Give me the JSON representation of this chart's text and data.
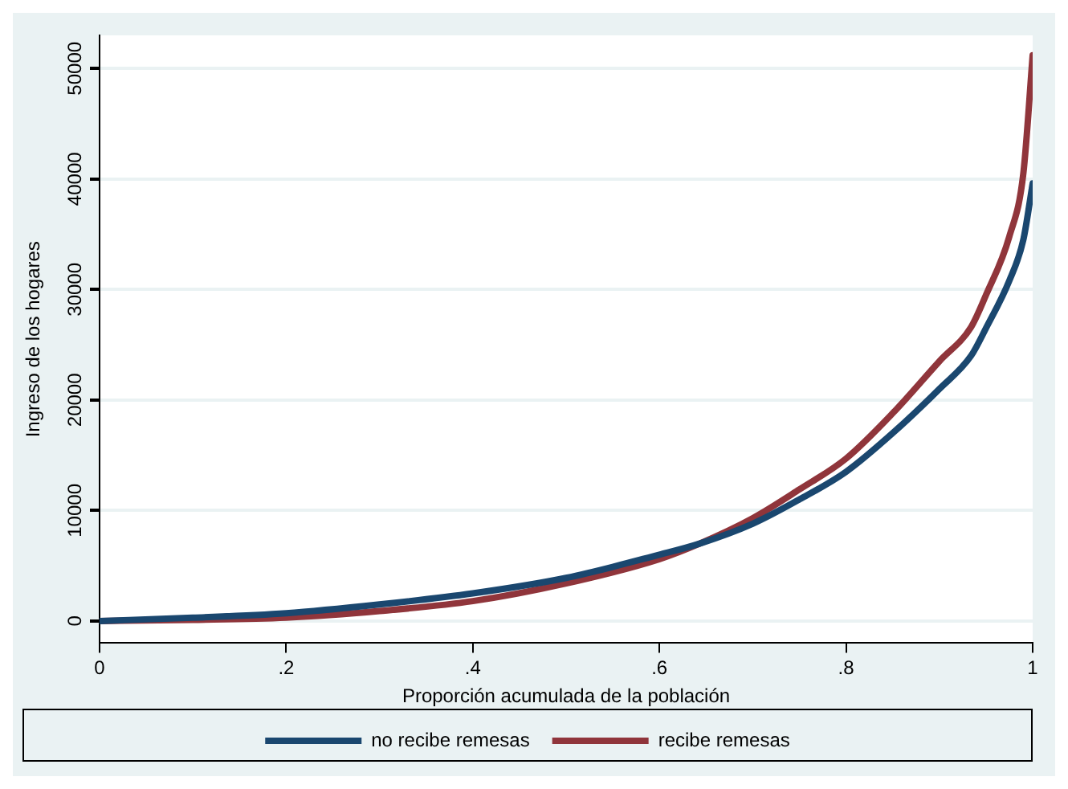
{
  "chart_data": {
    "type": "line",
    "xlabel": "Proporción acumulada de la población",
    "ylabel": "Ingreso de los hogares",
    "xlim": [
      0,
      1
    ],
    "xticks": [
      {
        "value": 0,
        "label": "0"
      },
      {
        "value": 0.2,
        "label": ".2"
      },
      {
        "value": 0.4,
        "label": ".4"
      },
      {
        "value": 0.6,
        "label": ".6"
      },
      {
        "value": 0.8,
        "label": ".8"
      },
      {
        "value": 1,
        "label": "1"
      }
    ],
    "ylim": [
      -2000,
      53000
    ],
    "yticks": [
      0,
      10000,
      20000,
      30000,
      40000,
      50000
    ],
    "grid": "y",
    "legend": "bottom",
    "line_style": "solid",
    "marker": "none",
    "series": [
      {
        "name": "no recibe remesas",
        "color": "#1a476f",
        "x": [
          0,
          0.1,
          0.2,
          0.3,
          0.4,
          0.5,
          0.6,
          0.643,
          0.7,
          0.75,
          0.8,
          0.85,
          0.9,
          0.934,
          0.95,
          0.975,
          0.99,
          1
        ],
        "values": [
          0,
          300,
          700,
          1500,
          2500,
          3900,
          6000,
          7000,
          8800,
          11000,
          13500,
          17000,
          21000,
          24000,
          26500,
          30800,
          34500,
          39600
        ]
      },
      {
        "name": "recibe remesas",
        "color": "#90353b",
        "x": [
          0,
          0.1,
          0.2,
          0.3,
          0.4,
          0.5,
          0.6,
          0.643,
          0.7,
          0.75,
          0.8,
          0.85,
          0.9,
          0.934,
          0.95,
          0.975,
          0.99,
          1
        ],
        "values": [
          0,
          100,
          300,
          900,
          1800,
          3400,
          5600,
          7000,
          9300,
          11900,
          14700,
          18800,
          23500,
          26600,
          29500,
          34800,
          40500,
          51200
        ]
      }
    ]
  }
}
